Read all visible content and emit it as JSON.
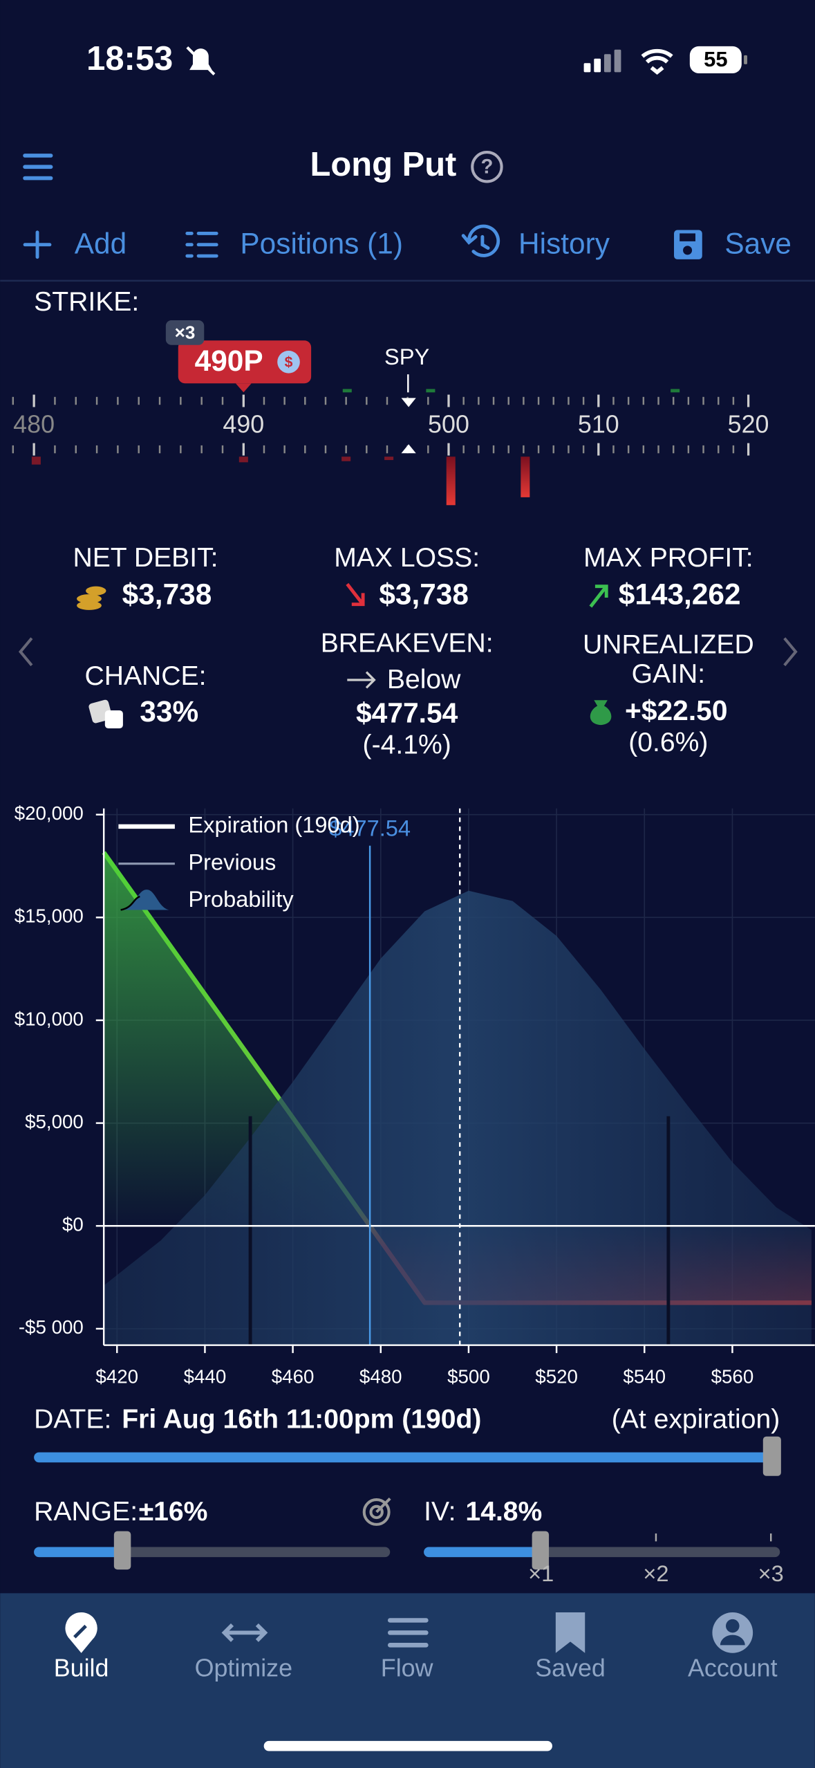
{
  "status_bar": {
    "time": "18:53",
    "battery": "55"
  },
  "header": {
    "title": "Long Put",
    "help": "?"
  },
  "toolbar": [
    {
      "label": "Add"
    },
    {
      "label": "Positions (1)"
    },
    {
      "label": "History"
    },
    {
      "label": "Save"
    }
  ],
  "strike": {
    "label": "STRIKE:",
    "multiplier": "×3",
    "position": "490P",
    "underlying": "SPY",
    "ruler_ticks": [
      480,
      490,
      500,
      510,
      520
    ]
  },
  "stats": {
    "net_debit": {
      "label": "NET DEBIT:",
      "value": "$3,738"
    },
    "max_loss": {
      "label": "MAX LOSS:",
      "value": "$3,738"
    },
    "max_profit": {
      "label": "MAX PROFIT:",
      "value": "$143,262"
    },
    "chance": {
      "label": "CHANCE:",
      "value": "33%"
    },
    "breakeven": {
      "label": "BREAKEVEN:",
      "direction": "Below",
      "value": "$477.54",
      "change": "(-4.1%)"
    },
    "unrealized_gain": {
      "label_lines": [
        "UNREALIZED",
        "GAIN:"
      ],
      "value": "+$22.50",
      "change": "(0.6%)"
    }
  },
  "chart": {
    "type": "line",
    "xlim": [
      417,
      578
    ],
    "ylim": [
      -5800,
      20300
    ],
    "xticks": [
      {
        "value": 420,
        "label": "$420"
      },
      {
        "value": 440,
        "label": "$440"
      },
      {
        "value": 460,
        "label": "$460"
      },
      {
        "value": 480,
        "label": "$480"
      },
      {
        "value": 500,
        "label": "$500"
      },
      {
        "value": 520,
        "label": "$520"
      },
      {
        "value": 540,
        "label": "$540"
      },
      {
        "value": 560,
        "label": "$560"
      }
    ],
    "yticks": [
      {
        "value": -5000,
        "label": "-$5 000"
      },
      {
        "value": 0,
        "label": "$0"
      },
      {
        "value": 5000,
        "label": "$5,000"
      },
      {
        "value": 10000,
        "label": "$10,000"
      },
      {
        "value": 15000,
        "label": "$15,000"
      },
      {
        "value": 20000,
        "label": "$20,000"
      }
    ],
    "grid": true,
    "series": [
      {
        "name": "Expiration (190d)",
        "color": "#ffffff",
        "x": [
          417,
          490,
          578
        ],
        "values": [
          18162,
          -3738,
          -3738
        ]
      },
      {
        "name": "Previous",
        "color": "#8a94ad",
        "x": [],
        "values": []
      },
      {
        "name": "Probability",
        "color": "#2a5a8c",
        "x": [
          417,
          430,
          440,
          450,
          460,
          470,
          480,
          490,
          500,
          510,
          520,
          530,
          540,
          550,
          560,
          570,
          578
        ],
        "values": [
          -2900,
          -700,
          1500,
          4200,
          7000,
          10000,
          13000,
          15300,
          16300,
          15800,
          14100,
          11500,
          8600,
          5800,
          3100,
          900,
          -200
        ]
      }
    ],
    "breakeven": {
      "value": 477.54,
      "label": "$477.54"
    },
    "spot": 498
  },
  "date": {
    "label": "DATE:",
    "value": "Fri Aug 16th 11:00pm (190d)",
    "note": "(At expiration)"
  },
  "range": {
    "label": "RANGE:",
    "value": "±16%"
  },
  "iv": {
    "label": "IV:",
    "value": "14.8%",
    "ticks": [
      "×1",
      "×2",
      "×3"
    ]
  },
  "tab_bar": [
    {
      "label": "Build"
    },
    {
      "label": "Optimize"
    },
    {
      "label": "Flow"
    },
    {
      "label": "Saved"
    },
    {
      "label": "Account"
    }
  ]
}
